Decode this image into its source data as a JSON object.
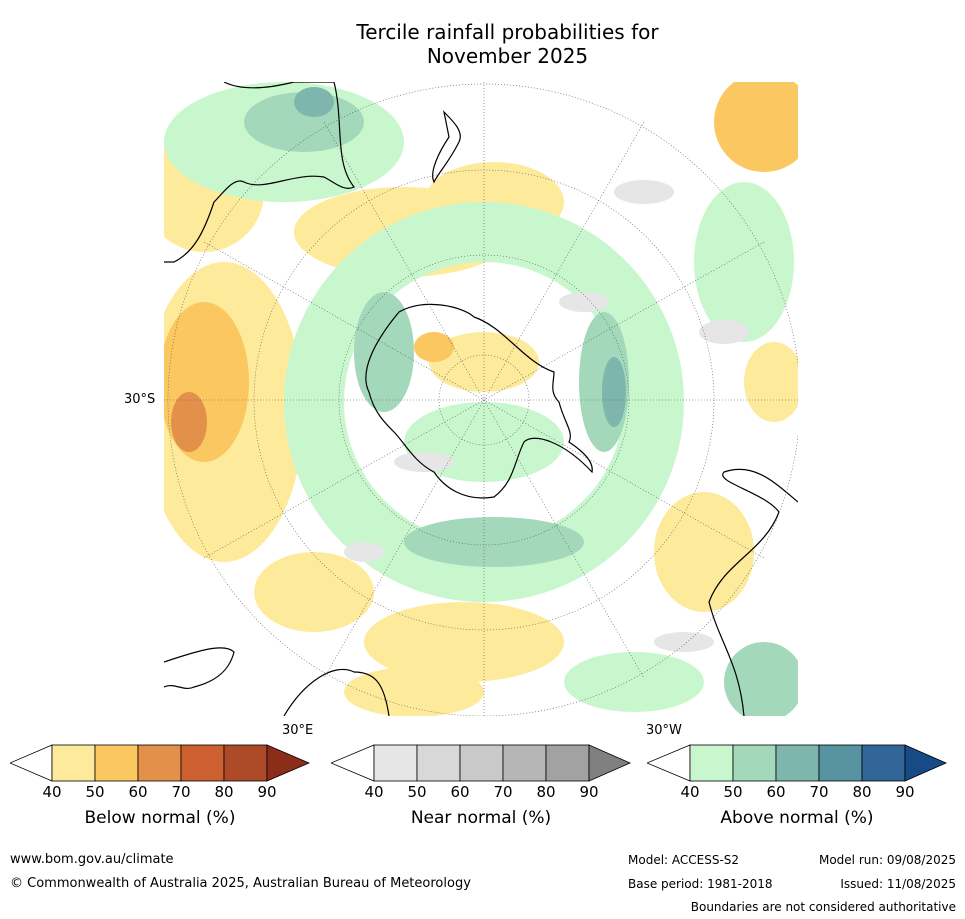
{
  "title": {
    "line1": "Tercile rainfall probabilities for",
    "line2": "November 2025"
  },
  "labels": {
    "lat_30s": "30°S",
    "lon_30e": "30°E",
    "lon_30w": "30°W"
  },
  "legend": {
    "below": {
      "title": "Below normal (%)",
      "ticks": [
        "40",
        "50",
        "60",
        "70",
        "80",
        "90"
      ],
      "colors": [
        "#ffffff",
        "#fdeb9b",
        "#fbc760",
        "#e3914a",
        "#cd6030",
        "#ad4a28",
        "#8c2d1a"
      ]
    },
    "near": {
      "title": "Near normal (%)",
      "ticks": [
        "40",
        "50",
        "60",
        "70",
        "80",
        "90"
      ],
      "colors": [
        "#ffffff",
        "#e6e6e6",
        "#d8d8d8",
        "#c9c9c9",
        "#b6b6b6",
        "#a2a2a2",
        "#808080"
      ]
    },
    "above": {
      "title": "Above normal (%)",
      "ticks": [
        "40",
        "50",
        "60",
        "70",
        "80",
        "90"
      ],
      "colors": [
        "#ffffff",
        "#c8f7ce",
        "#a3d8bb",
        "#7eb6ad",
        "#5893a1",
        "#336698",
        "#174b86"
      ]
    }
  },
  "footer": {
    "url": "www.bom.gov.au/climate",
    "copyright": "© Commonwealth of Australia 2025, Australian Bureau of Meteorology",
    "model": "Model: ACCESS-S2",
    "model_run": "Model run: 09/08/2025",
    "base_period": "Base period: 1981-2018",
    "issued": "Issued: 11/08/2025",
    "disclaimer": "Boundaries are not considered authoritative"
  }
}
